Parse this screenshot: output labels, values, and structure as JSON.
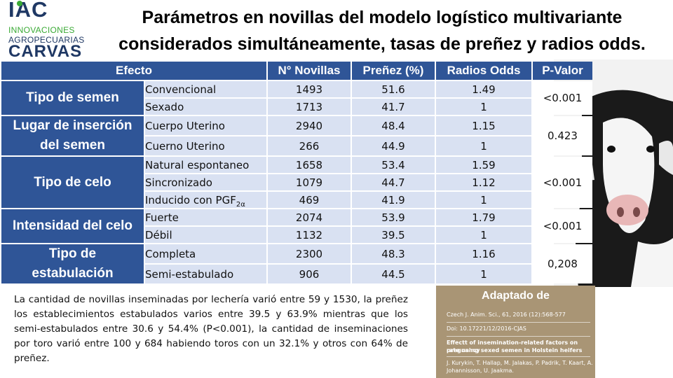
{
  "logo": {
    "line1": "IAC",
    "line2": "INNOVACIONES",
    "line3": "AGROPECUARIAS",
    "line4": "CARVAS"
  },
  "title": {
    "line1": "Parámetros en novillas del modelo logístico multivariante",
    "line2": "considerados simultáneamente, tasas de preñez y radios odds."
  },
  "table": {
    "headers": [
      "Efecto",
      "N° Novillas",
      "Preñez (%)",
      "Radios Odds",
      "P-Valor"
    ],
    "groups": [
      {
        "label": "Tipo de semen",
        "p": "<0.001",
        "rows": [
          {
            "label": "Convencional",
            "n": "1493",
            "pct": "51.6",
            "or": "1.49"
          },
          {
            "label": "Sexado",
            "n": "1713",
            "pct": "41.7",
            "or": "1"
          }
        ]
      },
      {
        "label_l1": "Lugar de inserción",
        "label_l2": "del semen",
        "p": "0.423",
        "rows": [
          {
            "label": "Cuerpo Uterino",
            "n": "2940",
            "pct": "48.4",
            "or": "1.15"
          },
          {
            "label": "Cuerno Uterino",
            "n": "266",
            "pct": "44.9",
            "or": "1"
          }
        ]
      },
      {
        "label": "Tipo de celo",
        "p": "<0.001",
        "rows": [
          {
            "label": "Natural espontaneo",
            "n": "1658",
            "pct": "53.4",
            "or": "1.59"
          },
          {
            "label": "Sincronizado",
            "n": "1079",
            "pct": "44.7",
            "or": "1.12"
          },
          {
            "label": "Inducido con PGF",
            "sub": "2α",
            "n": "469",
            "pct": "41.9",
            "or": "1"
          }
        ]
      },
      {
        "label": "Intensidad del celo",
        "p": "<0.001",
        "rows": [
          {
            "label": "Fuerte",
            "n": "2074",
            "pct": "53.9",
            "or": "1.79"
          },
          {
            "label": "Débil",
            "n": "1132",
            "pct": "39.5",
            "or": "1"
          }
        ]
      },
      {
        "label_l1": "Tipo de",
        "label_l2": "estabulación",
        "p": "0,208",
        "rows": [
          {
            "label": "Completa",
            "n": "2300",
            "pct": "48.3",
            "or": "1.16"
          },
          {
            "label": "Semi-estabulado",
            "n": "906",
            "pct": "44.5",
            "or": "1"
          }
        ]
      }
    ]
  },
  "note": "La cantidad de novillas inseminadas por lechería varió entre 59 y 1530, la preñez los establecimientos estabulados varios entre 39.5 y 63.9% mientras que los semi-estabulados entre 30.6 y 54.4% (P<0.001), la cantidad de inseminaciones por toro varió entre 100 y 684 habiendo toros con un 32.1% y otros con 64% de preñez.",
  "reference": {
    "heading": "Adaptado de",
    "journal": "Czech J. Anim. Sci., 61, 2016 (12):568-577",
    "doi": "Doi: 10.17221/12/2016-CJAS",
    "article_l1": "Effectt of insemination-related factors on pregnancy",
    "article_l2": "rate using sexed semen in Holstein heifers",
    "authors_l1": "J. Kurykin, T. Hallap, M. Jalakas, P. Padrik, T. Kaart, A.",
    "authors_l2": "Johannisson, U. Jaakma."
  }
}
